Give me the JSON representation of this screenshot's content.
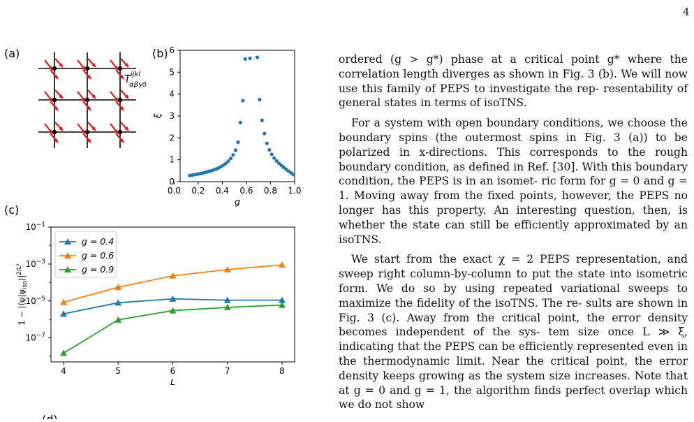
{
  "page_number": "4",
  "figure": {
    "label_a": "(a)",
    "label_b": "(b)",
    "label_c": "(c)",
    "label_d": "(d)",
    "tensor_label": "T^{ijkl}_{αβγδ}",
    "tensor_sup": "ijkl",
    "tensor_sub": "αβγδ",
    "tensor_T": "T"
  },
  "colors": {
    "series1": "#1f77b4",
    "series2": "#ff7f0e",
    "series3": "#2ca02c",
    "spin": "#e8141c",
    "scatter": "#1f77b4"
  },
  "chart_data": [
    {
      "type": "scatter",
      "xlabel": "g",
      "ylabel": "ξ",
      "xlim": [
        0.05,
        1.0
      ],
      "ylim": [
        0,
        6
      ],
      "xticks": [
        "0.0",
        "0.2",
        "0.4",
        "0.6",
        "0.8",
        "1.0"
      ],
      "yticks": [
        "0",
        "1",
        "2",
        "3",
        "4",
        "5",
        "6"
      ],
      "x": [
        0.13,
        0.15,
        0.17,
        0.19,
        0.21,
        0.23,
        0.25,
        0.27,
        0.29,
        0.31,
        0.33,
        0.35,
        0.37,
        0.39,
        0.41,
        0.43,
        0.45,
        0.47,
        0.49,
        0.51,
        0.53,
        0.55,
        0.57,
        0.59,
        0.63,
        0.69,
        0.71,
        0.73,
        0.75,
        0.77,
        0.79,
        0.81,
        0.83,
        0.85,
        0.87,
        0.89,
        0.91,
        0.93,
        0.95,
        0.97,
        0.99
      ],
      "y": [
        0.28,
        0.3,
        0.32,
        0.34,
        0.36,
        0.38,
        0.41,
        0.44,
        0.47,
        0.5,
        0.54,
        0.58,
        0.63,
        0.69,
        0.76,
        0.84,
        0.94,
        1.06,
        1.22,
        1.44,
        1.8,
        2.7,
        3.7,
        5.6,
        5.63,
        5.68,
        3.75,
        2.8,
        2.2,
        1.75,
        1.45,
        1.25,
        1.08,
        0.95,
        0.84,
        0.74,
        0.65,
        0.56,
        0.48,
        0.4,
        0.32
      ]
    },
    {
      "type": "line",
      "xlabel": "L",
      "ylabel": "1 − |⟨ψ|ψ_iso⟩|^{2/L²}",
      "ylabel_main": "1 − |⟨ψ|ψ",
      "ylabel_sub": "iso",
      "ylabel_tail": "⟩|",
      "ylabel_sup": "2/L²",
      "x": [
        4,
        5,
        6,
        7,
        8
      ],
      "xticks": [
        "4",
        "5",
        "6",
        "7",
        "8"
      ],
      "yscale": "log",
      "ylim_exp": [
        -8.3,
        -1
      ],
      "yticks": [
        {
          "base": "10",
          "exp": "−1",
          "e": -1
        },
        {
          "base": "10",
          "exp": "−3",
          "e": -3
        },
        {
          "base": "10",
          "exp": "−5",
          "e": -5
        },
        {
          "base": "10",
          "exp": "−7",
          "e": -7
        }
      ],
      "legend_position": "top-left",
      "series": [
        {
          "name": "g = 0.4",
          "values": [
            2e-06,
            8e-06,
            1.3e-05,
            1.1e-05,
            1.1e-05
          ]
        },
        {
          "name": "g = 0.6",
          "values": [
            8.5e-06,
            5.5e-05,
            0.00023,
            0.0005,
            0.0009
          ]
        },
        {
          "name": "g = 0.9",
          "values": [
            1.5e-08,
            9.5e-07,
            3e-06,
            4.5e-06,
            6e-06
          ]
        }
      ]
    }
  ],
  "text": {
    "l1": "ordered (g > g*) phase at a critical point g* where the",
    "l2": "correlation length diverges as shown in Fig. 3 (b). We",
    "l3": "will now use this family of PEPS to investigate the rep-",
    "l4": "resentability of general states in terms of isoTNS.",
    "l5": "For a system with open boundary conditions, we",
    "l6": "choose the boundary spins (the outermost spins in Fig. 3",
    "l7": "(a)) to be polarized in x-directions. This corresponds to",
    "l8": "the rough boundary condition, as defined in Ref. [30].",
    "l9": "With this boundary condition, the PEPS is in an isomet-",
    "l10": "ric form for g = 0 and g = 1. Moving away from the fixed",
    "l11": "points, however, the PEPS no longer has this property.",
    "l12": "An interesting question, then, is whether the state can",
    "l13": "still be efficiently approximated by an isoTNS.",
    "l14": "We start from the exact χ = 2 PEPS representation,",
    "l15": "and sweep right column-by-column to put the state into",
    "l16": "isometric form. We do so by using repeated variational",
    "l17": "sweeps to maximize the fidelity of the isoTNS. The re-",
    "l18": "sults are shown in Fig. 3 (c). Away from the critical",
    "l19": "point, the error density becomes independent of the sys-",
    "l20": "tem size once L ≫ ξ, indicating that the PEPS can be",
    "l21": "efficiently represented even in the thermodynamic limit.",
    "l22": "Near the critical point, the error density keeps growing as",
    "l23": "the system size increases. Note that at g = 0 and g = 1,",
    "l24": "the algorithm finds perfect overlap which we do not show"
  }
}
